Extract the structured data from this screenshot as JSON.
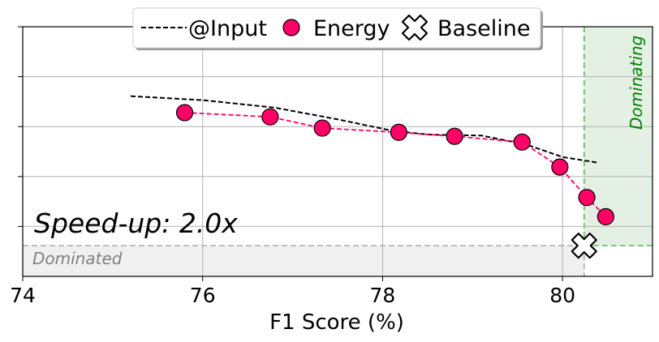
{
  "chart_data": {
    "type": "scatter",
    "xlabel": "F1 Score (%)",
    "xlim": [
      74,
      81
    ],
    "ylim": [
      0,
      1
    ],
    "x_ticks": [
      "74",
      "76",
      "78",
      "80"
    ],
    "grid": true,
    "legend_position": "top-center",
    "series": [
      {
        "name": "@Input",
        "style": "dashed-line",
        "color": "#000000",
        "x": [
          75.2,
          76.0,
          76.8,
          77.5,
          78.1,
          78.5,
          79.1,
          79.6,
          80.0,
          80.4
        ],
        "y": [
          0.722,
          0.706,
          0.676,
          0.629,
          0.584,
          0.568,
          0.564,
          0.528,
          0.478,
          0.455
        ]
      },
      {
        "name": "Energy",
        "style": "line-markers",
        "color": "#ff0066",
        "x": [
          75.8,
          76.75,
          77.33,
          78.18,
          78.8,
          79.55,
          79.97,
          80.27,
          80.48
        ],
        "y": [
          0.656,
          0.639,
          0.594,
          0.577,
          0.561,
          0.538,
          0.438,
          0.316,
          0.239
        ]
      },
      {
        "name": "Baseline",
        "style": "x-marker",
        "color": "#ffffff",
        "x": [
          80.24
        ],
        "y": [
          0.123
        ]
      }
    ],
    "regions": {
      "dominated_label": "Dominated",
      "dominating_label": "Dominating"
    },
    "annotation": "Speed-up: 2.0x"
  },
  "colors": {
    "energy": "#ff0066",
    "grid": "#b0b0b0",
    "dominated_fill": "#f0f0f0",
    "dominating_fill": "#e3f0e3",
    "dominating_stroke": "#5cb85c"
  }
}
